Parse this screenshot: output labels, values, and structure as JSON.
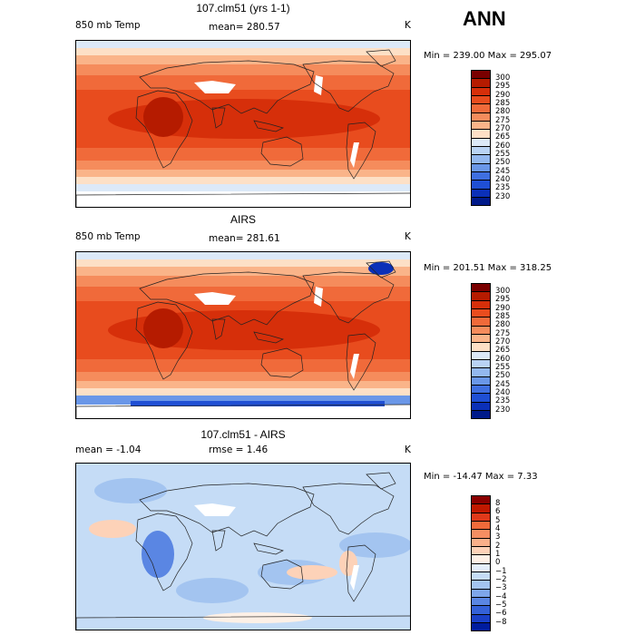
{
  "season": "ANN",
  "panels": [
    {
      "title": "107.clm51 (yrs 1-1)",
      "left_label": "850 mb Temp",
      "center_label": "mean= 280.57",
      "unit": "K",
      "minmax": "Min = 239.00 Max = 295.07",
      "colorbar": {
        "labels": [
          "300",
          "295",
          "290",
          "285",
          "280",
          "275",
          "270",
          "265",
          "260",
          "255",
          "250",
          "245",
          "240",
          "235",
          "230"
        ],
        "colors": [
          "#7a0000",
          "#b51b00",
          "#d62f0a",
          "#e84c1e",
          "#f06a3a",
          "#f58c5c",
          "#fab489",
          "#fde0c6",
          "#dce9f8",
          "#b9d3f4",
          "#93b8ef",
          "#6a97e8",
          "#3f6fe0",
          "#1f4fd4",
          "#0b30b8",
          "#001a8a"
        ]
      },
      "map": "model"
    },
    {
      "title": "AIRS",
      "left_label": "850 mb Temp",
      "center_label": "mean= 281.61",
      "unit": "K",
      "minmax": "Min = 201.51 Max = 318.25",
      "colorbar": {
        "labels": [
          "300",
          "295",
          "290",
          "285",
          "280",
          "275",
          "270",
          "265",
          "260",
          "255",
          "250",
          "245",
          "240",
          "235",
          "230"
        ],
        "colors": [
          "#7a0000",
          "#b51b00",
          "#d62f0a",
          "#e84c1e",
          "#f06a3a",
          "#f58c5c",
          "#fab489",
          "#fde0c6",
          "#dce9f8",
          "#b9d3f4",
          "#93b8ef",
          "#6a97e8",
          "#3f6fe0",
          "#1f4fd4",
          "#0b30b8",
          "#001a8a"
        ]
      },
      "map": "obs"
    },
    {
      "title": "107.clm51 - AIRS",
      "left_label": "mean =  -1.04",
      "center_label": "rmse =   1.46",
      "unit": "K",
      "minmax": "Min = -14.47 Max =    7.33",
      "colorbar": {
        "labels": [
          "8",
          "6",
          "5",
          "4",
          "3",
          "2",
          "1",
          "0",
          "−1",
          "−2",
          "−3",
          "−4",
          "−5",
          "−6",
          "−8"
        ],
        "colors": [
          "#8b0000",
          "#c01800",
          "#e0391a",
          "#f06a3a",
          "#f58e62",
          "#fab08a",
          "#fdd2b8",
          "#fdf0e6",
          "#e4eefb",
          "#c5dcf6",
          "#a3c4f0",
          "#7ea6ea",
          "#5a86e3",
          "#3461d8",
          "#1a40c8",
          "#001c9e"
        ]
      },
      "map": "diff"
    }
  ]
}
